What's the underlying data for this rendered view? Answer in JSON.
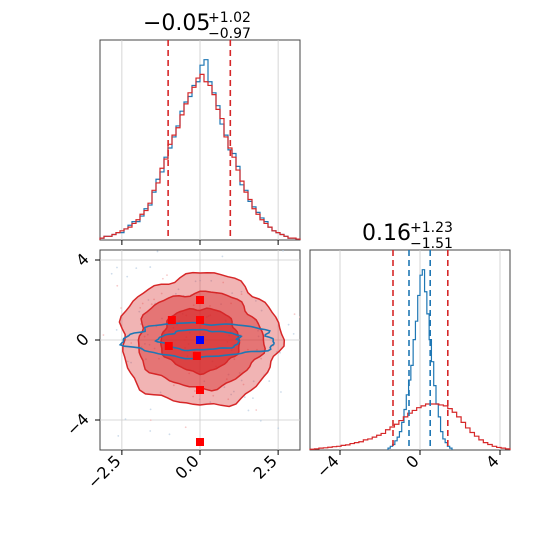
{
  "colors": {
    "series_a": "#d62728",
    "series_b": "#1f77b4",
    "marker_red": "#ff0000",
    "marker_blue": "#0000ff",
    "grid": "#cccccc",
    "axis": "#444444"
  },
  "chart_data": [
    {
      "type": "histogram",
      "panel": "top-left",
      "title_value": "−0.05",
      "title_plus": "+1.02",
      "title_minus": "−0.97",
      "xlim": [
        -3.2,
        3.2
      ],
      "grid": true,
      "quantile_lines": [
        {
          "x": -1.02,
          "series": "red"
        },
        {
          "x": 0.97,
          "series": "red"
        }
      ],
      "series": [
        {
          "color_key": "series_b",
          "bins": [
            -3.2,
            3.2
          ],
          "counts": [
            0.01,
            0.02,
            0.02,
            0.03,
            0.04,
            0.04,
            0.06,
            0.08,
            0.1,
            0.1,
            0.13,
            0.17,
            0.19,
            0.26,
            0.33,
            0.37,
            0.45,
            0.5,
            0.56,
            0.62,
            0.7,
            0.75,
            0.78,
            0.84,
            0.86,
            0.95,
            0.98,
            0.86,
            0.8,
            0.73,
            0.63,
            0.57,
            0.49,
            0.47,
            0.4,
            0.3,
            0.27,
            0.21,
            0.18,
            0.15,
            0.12,
            0.1,
            0.07,
            0.05,
            0.04,
            0.03,
            0.02,
            0.01,
            0.01,
            0.005
          ]
        },
        {
          "color_key": "series_a",
          "bins": [
            -3.2,
            3.2
          ],
          "counts": [
            0.01,
            0.02,
            0.02,
            0.03,
            0.04,
            0.05,
            0.06,
            0.07,
            0.09,
            0.11,
            0.14,
            0.16,
            0.2,
            0.27,
            0.31,
            0.39,
            0.44,
            0.52,
            0.57,
            0.61,
            0.68,
            0.74,
            0.8,
            0.83,
            0.88,
            0.9,
            0.86,
            0.84,
            0.79,
            0.71,
            0.66,
            0.56,
            0.5,
            0.45,
            0.38,
            0.32,
            0.26,
            0.22,
            0.17,
            0.14,
            0.11,
            0.09,
            0.07,
            0.05,
            0.04,
            0.03,
            0.02,
            0.01,
            0.01,
            0.005
          ]
        }
      ]
    },
    {
      "type": "histogram",
      "panel": "bottom-right",
      "title_value": "0.16",
      "title_plus": "+1.23",
      "title_minus": "−1.51",
      "xlim": [
        -5.5,
        4.5
      ],
      "xticks": [
        "−4",
        "0",
        "4"
      ],
      "xtick_values": [
        -4,
        0,
        4
      ],
      "grid": true,
      "quantile_lines": [
        {
          "x": -1.35,
          "series": "red"
        },
        {
          "x": 1.39,
          "series": "red"
        },
        {
          "x": -0.55,
          "series": "blue"
        },
        {
          "x": 0.51,
          "series": "blue"
        }
      ],
      "series": [
        {
          "color_key": "series_b",
          "bins": [
            -1.6,
            1.6
          ],
          "counts": [
            0.01,
            0.02,
            0.03,
            0.05,
            0.07,
            0.1,
            0.15,
            0.22,
            0.3,
            0.38,
            0.46,
            0.6,
            0.7,
            0.84,
            0.95,
            0.98,
            0.86,
            0.74,
            0.6,
            0.48,
            0.35,
            0.25,
            0.18,
            0.1,
            0.06,
            0.04,
            0.02,
            0.01
          ]
        },
        {
          "color_key": "series_a",
          "bins": [
            -5.5,
            4.5
          ],
          "counts": [
            0.004,
            0.006,
            0.01,
            0.012,
            0.015,
            0.018,
            0.02,
            0.025,
            0.028,
            0.035,
            0.04,
            0.045,
            0.055,
            0.06,
            0.07,
            0.08,
            0.09,
            0.11,
            0.125,
            0.14,
            0.16,
            0.18,
            0.2,
            0.215,
            0.23,
            0.24,
            0.25,
            0.25,
            0.25,
            0.245,
            0.24,
            0.225,
            0.205,
            0.18,
            0.15,
            0.12,
            0.095,
            0.075,
            0.055,
            0.04,
            0.03,
            0.02,
            0.014,
            0.01,
            0.006
          ]
        }
      ]
    },
    {
      "type": "contour",
      "panel": "bottom-left",
      "xlim": [
        -3.2,
        3.2
      ],
      "ylim": [
        -5.5,
        4.5
      ],
      "xticks": [
        "−2.5",
        "0.0",
        "2.5"
      ],
      "xtick_values": [
        -2.5,
        0.0,
        2.5
      ],
      "yticks": [
        "−4",
        "0",
        "4"
      ],
      "ytick_values": [
        -4,
        0,
        4
      ],
      "grid": true,
      "red_levels": [
        {
          "sx": 2.55,
          "sy": 3.3
        },
        {
          "sx": 2.0,
          "sy": 2.4
        },
        {
          "sx": 1.25,
          "sy": 1.6
        }
      ],
      "blue_levels": [
        {
          "sx": 2.4,
          "sy": 0.85
        },
        {
          "sx": 1.3,
          "sy": 0.5
        }
      ],
      "red_markers": [
        {
          "x": 0.0,
          "y": 2.0
        },
        {
          "x": -0.9,
          "y": 1.0
        },
        {
          "x": 0.0,
          "y": 1.0
        },
        {
          "x": -1.0,
          "y": -0.3
        },
        {
          "x": -0.1,
          "y": -0.8
        },
        {
          "x": 0.0,
          "y": -2.5
        },
        {
          "x": 0.0,
          "y": -5.1
        }
      ],
      "blue_marker": {
        "x": 0.0,
        "y": 0.0
      }
    }
  ]
}
